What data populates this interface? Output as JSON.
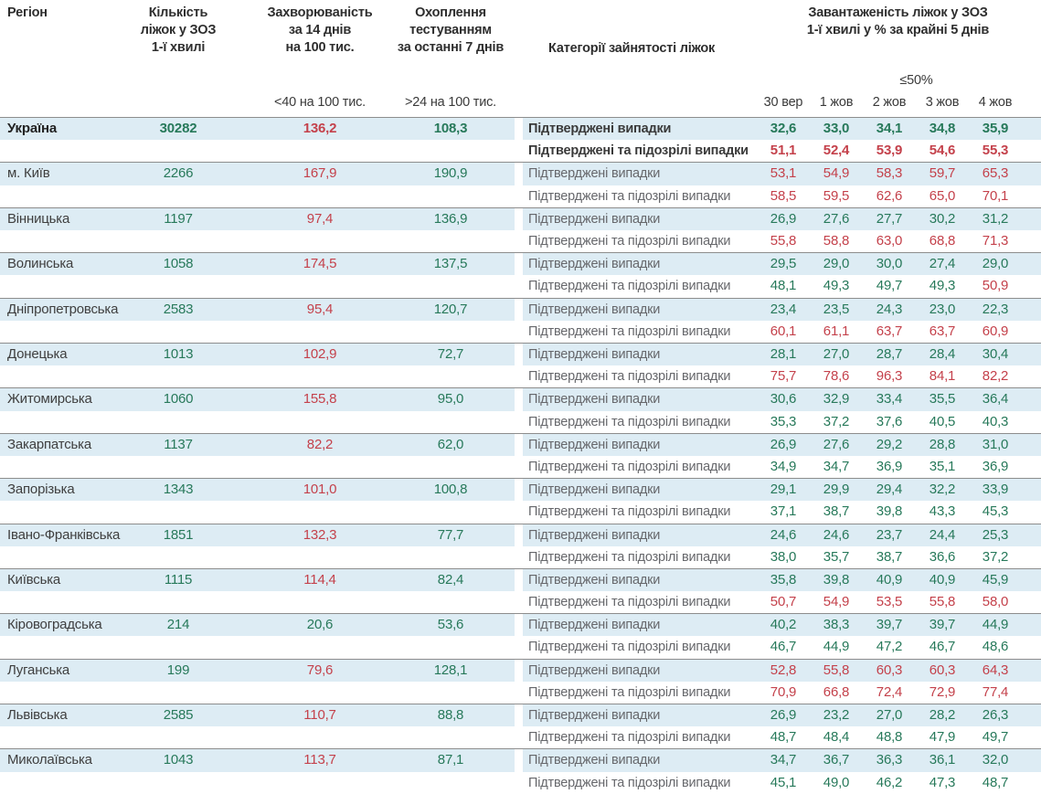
{
  "chart_data": {
    "type": "table",
    "header": {
      "region": "Регіон",
      "beds": "Кількість\nліжок у ЗОЗ\n1-ї хвилі",
      "incidence": "Захворюваність\nза 14 днів\nна 100 тис.",
      "testing": "Охоплення\nтестуванням\nза останні 7 днів",
      "categories": "Категорії зайнятості ліжок",
      "occupancy": "Завантаженість ліжок у ЗОЗ\n1-ї хвилі у % за крайні 5 днів",
      "occupancy_norm": "≤50%",
      "incidence_norm": "<40 на 100 тис.",
      "testing_norm": ">24 на 100 тис.",
      "dates": [
        "30 вер",
        "1 жов",
        "2 жов",
        "3 жов",
        "4 жов"
      ]
    },
    "category_labels": {
      "confirmed": "Підтверджені випадки",
      "suspected": "Підтверджені та підозрілі випадки"
    },
    "rows": [
      {
        "region": "Україна",
        "bold": true,
        "beds": "30282",
        "incidence": "136,2",
        "testing": "108,3",
        "confirmed": [
          "32,6",
          "33,0",
          "34,1",
          "34,8",
          "35,9"
        ],
        "suspected": [
          "51,1",
          "52,4",
          "53,9",
          "54,6",
          "55,3"
        ]
      },
      {
        "region": "м. Київ",
        "bold": false,
        "beds": "2266",
        "incidence": "167,9",
        "testing": "190,9",
        "confirmed": [
          "53,1",
          "54,9",
          "58,3",
          "59,7",
          "65,3"
        ],
        "suspected": [
          "58,5",
          "59,5",
          "62,6",
          "65,0",
          "70,1"
        ]
      },
      {
        "region": "Вінницька",
        "bold": false,
        "beds": "1197",
        "incidence": "97,4",
        "testing": "136,9",
        "confirmed": [
          "26,9",
          "27,6",
          "27,7",
          "30,2",
          "31,2"
        ],
        "suspected": [
          "55,8",
          "58,8",
          "63,0",
          "68,8",
          "71,3"
        ]
      },
      {
        "region": "Волинська",
        "bold": false,
        "beds": "1058",
        "incidence": "174,5",
        "testing": "137,5",
        "confirmed": [
          "29,5",
          "29,0",
          "30,0",
          "27,4",
          "29,0"
        ],
        "suspected": [
          "48,1",
          "49,3",
          "49,7",
          "49,3",
          "50,9"
        ]
      },
      {
        "region": "Дніпропетровська",
        "bold": false,
        "beds": "2583",
        "incidence": "95,4",
        "testing": "120,7",
        "confirmed": [
          "23,4",
          "23,5",
          "24,3",
          "23,0",
          "22,3"
        ],
        "suspected": [
          "60,1",
          "61,1",
          "63,7",
          "63,7",
          "60,9"
        ]
      },
      {
        "region": "Донецька",
        "bold": false,
        "beds": "1013",
        "incidence": "102,9",
        "testing": "72,7",
        "confirmed": [
          "28,1",
          "27,0",
          "28,7",
          "28,4",
          "30,4"
        ],
        "suspected": [
          "75,7",
          "78,6",
          "96,3",
          "84,1",
          "82,2"
        ]
      },
      {
        "region": "Житомирська",
        "bold": false,
        "beds": "1060",
        "incidence": "155,8",
        "testing": "95,0",
        "confirmed": [
          "30,6",
          "32,9",
          "33,4",
          "35,5",
          "36,4"
        ],
        "suspected": [
          "35,3",
          "37,2",
          "37,6",
          "40,5",
          "40,3"
        ]
      },
      {
        "region": "Закарпатська",
        "bold": false,
        "beds": "1137",
        "incidence": "82,2",
        "testing": "62,0",
        "confirmed": [
          "26,9",
          "27,6",
          "29,2",
          "28,8",
          "31,0"
        ],
        "suspected": [
          "34,9",
          "34,7",
          "36,9",
          "35,1",
          "36,9"
        ]
      },
      {
        "region": "Запорізька",
        "bold": false,
        "beds": "1343",
        "incidence": "101,0",
        "testing": "100,8",
        "confirmed": [
          "29,1",
          "29,9",
          "29,4",
          "32,2",
          "33,9"
        ],
        "suspected": [
          "37,1",
          "38,7",
          "39,8",
          "43,3",
          "45,3"
        ]
      },
      {
        "region": "Івано-Франківська",
        "bold": false,
        "beds": "1851",
        "incidence": "132,3",
        "testing": "77,7",
        "confirmed": [
          "24,6",
          "24,6",
          "23,7",
          "24,4",
          "25,3"
        ],
        "suspected": [
          "38,0",
          "35,7",
          "38,7",
          "36,6",
          "37,2"
        ]
      },
      {
        "region": "Київська",
        "bold": false,
        "beds": "1115",
        "incidence": "114,4",
        "testing": "82,4",
        "confirmed": [
          "35,8",
          "39,8",
          "40,9",
          "40,9",
          "45,9"
        ],
        "suspected": [
          "50,7",
          "54,9",
          "53,5",
          "55,8",
          "58,0"
        ]
      },
      {
        "region": "Кіровоградська",
        "bold": false,
        "beds": "214",
        "incidence": "20,6",
        "testing": "53,6",
        "confirmed": [
          "40,2",
          "38,3",
          "39,7",
          "39,7",
          "44,9"
        ],
        "suspected": [
          "46,7",
          "44,9",
          "47,2",
          "46,7",
          "48,6"
        ]
      },
      {
        "region": "Луганська",
        "bold": false,
        "beds": "199",
        "incidence": "79,6",
        "testing": "128,1",
        "confirmed": [
          "52,8",
          "55,8",
          "60,3",
          "60,3",
          "64,3"
        ],
        "suspected": [
          "70,9",
          "66,8",
          "72,4",
          "72,9",
          "77,4"
        ]
      },
      {
        "region": "Львівська",
        "bold": false,
        "beds": "2585",
        "incidence": "110,7",
        "testing": "88,8",
        "confirmed": [
          "26,9",
          "23,2",
          "27,0",
          "28,2",
          "26,3"
        ],
        "suspected": [
          "48,7",
          "48,4",
          "48,8",
          "47,9",
          "49,7"
        ]
      },
      {
        "region": "Миколаївська",
        "bold": false,
        "beds": "1043",
        "incidence": "113,7",
        "testing": "87,1",
        "confirmed": [
          "34,7",
          "36,7",
          "36,3",
          "36,1",
          "32,0"
        ],
        "suspected": [
          "45,1",
          "49,0",
          "46,2",
          "47,3",
          "48,7"
        ]
      }
    ],
    "thresholds": {
      "incidence_red_at_or_above": 40,
      "testing_red_at_or_below": 24,
      "occupancy_red_above": 50
    }
  },
  "colors": {
    "green": "#27795a",
    "red": "#c4414b",
    "row_band_blue": "#ddecf4",
    "separator_gray": "#8d8d8d"
  }
}
